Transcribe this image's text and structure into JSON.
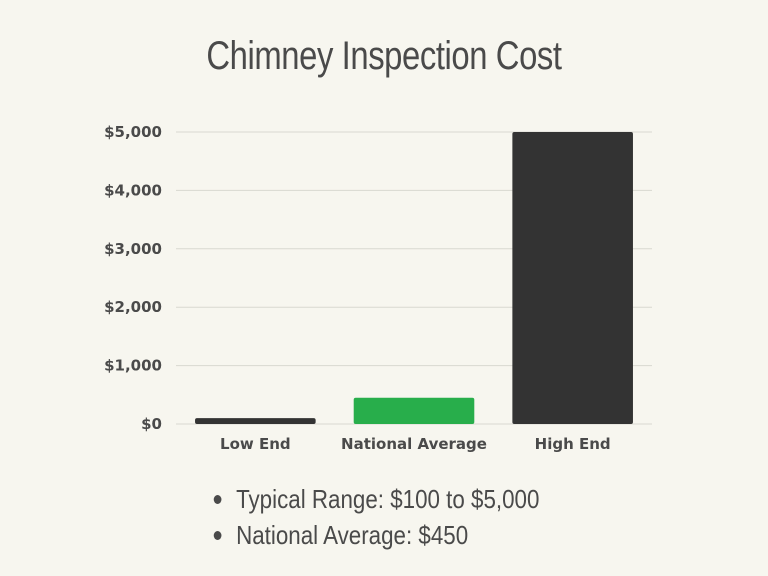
{
  "chart_data": {
    "type": "bar",
    "title": "Chimney Inspection Cost",
    "categories": [
      "Low End",
      "National Average",
      "High End"
    ],
    "values": [
      100,
      450,
      5000
    ],
    "bar_colors": [
      "#333333",
      "#28ae4b",
      "#333333"
    ],
    "ylim": [
      0,
      5000
    ],
    "yticks": [
      0,
      1000,
      2000,
      3000,
      4000,
      5000
    ],
    "ytick_labels": [
      "$0",
      "$1,000",
      "$2,000",
      "$3,000",
      "$4,000",
      "$5,000"
    ],
    "grid": true,
    "xlabel": "",
    "ylabel": ""
  },
  "notes": [
    "Typical Range: $100 to $5,000",
    "National Average: $450"
  ],
  "colors": {
    "background": "#f7f6ef",
    "text": "#4a4a4a",
    "grid": "#d9d8d0"
  }
}
